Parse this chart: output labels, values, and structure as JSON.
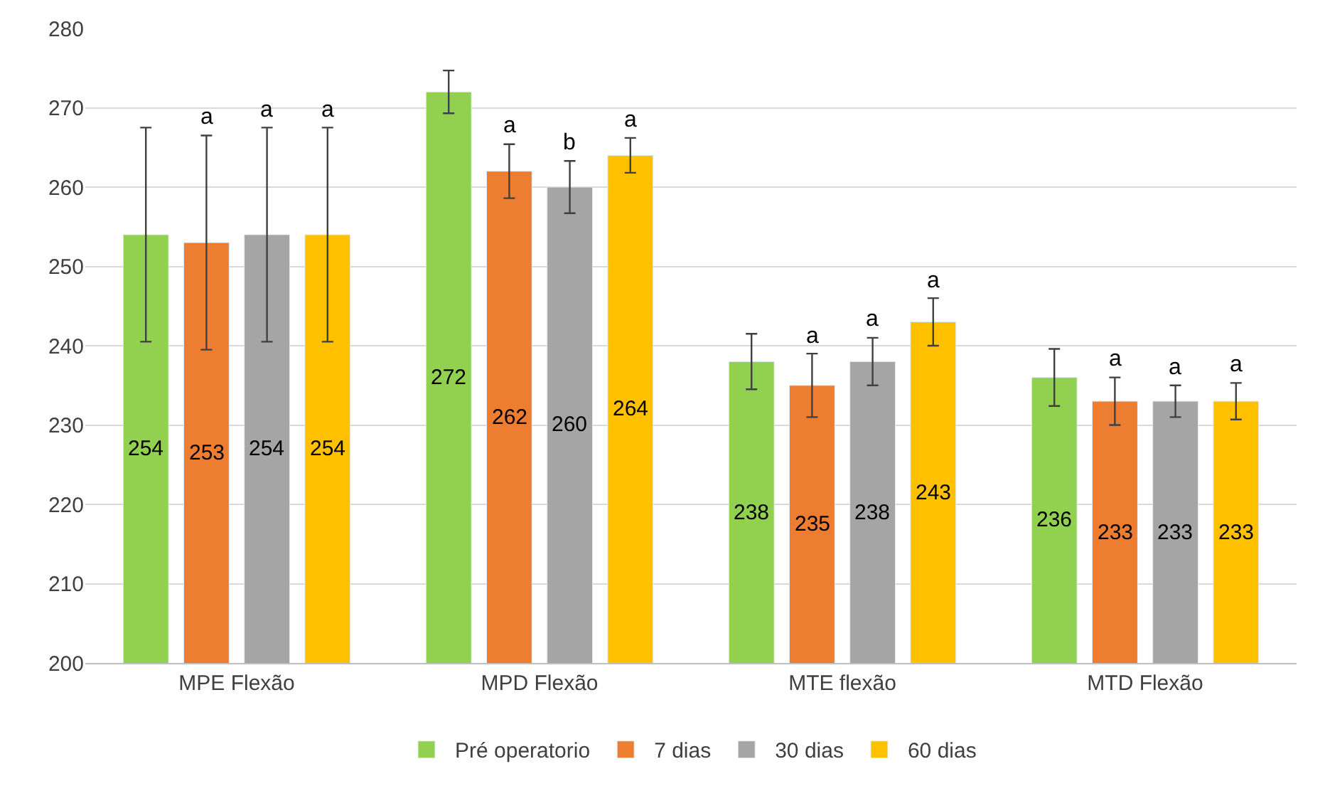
{
  "chart_data": {
    "type": "bar",
    "categories": [
      "MPE Flexão",
      "MPD Flexão",
      "MTE flexão",
      "MTD Flexão"
    ],
    "series": [
      {
        "name": "Pré operatorio",
        "color": "#92d050",
        "values": [
          254,
          272,
          238,
          236
        ],
        "errors": [
          13.5,
          2.7,
          3.5,
          3.6
        ]
      },
      {
        "name": "7 dias",
        "color": "#ed7d31",
        "values": [
          253,
          262,
          235,
          233
        ],
        "errors": [
          13.5,
          3.4,
          4,
          3
        ]
      },
      {
        "name": "30 dias",
        "color": "#a5a5a5",
        "values": [
          254,
          260,
          238,
          233
        ],
        "errors": [
          13.5,
          3.3,
          3,
          2
        ]
      },
      {
        "name": "60 dias",
        "color": "#ffc000",
        "values": [
          254,
          264,
          243,
          233
        ],
        "errors": [
          13.5,
          2.2,
          3,
          2.3
        ]
      }
    ],
    "annotations": [
      "a",
      "a",
      "a",
      "a",
      "b",
      "a",
      "a",
      "a",
      "a",
      "a",
      "a",
      "a"
    ],
    "ylim": [
      200,
      280
    ],
    "yticks": [
      200,
      210,
      220,
      230,
      240,
      250,
      260,
      270,
      280
    ],
    "grid": "y",
    "legend": "bottom",
    "data_labels": true
  }
}
